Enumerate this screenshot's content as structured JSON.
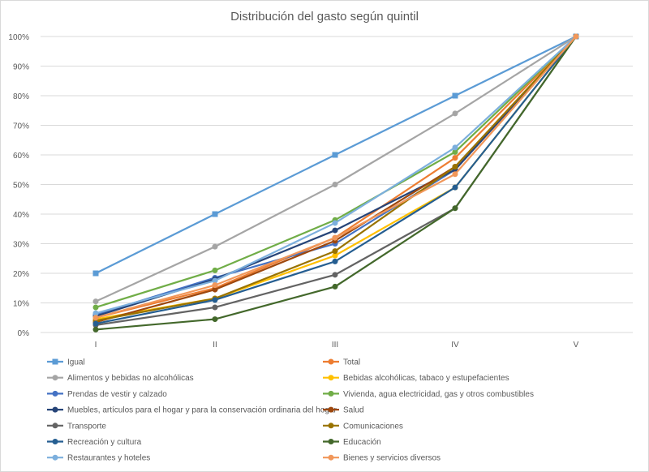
{
  "chart_data": {
    "type": "line",
    "title": "Distribución del gasto según quintil",
    "categories": [
      "I",
      "II",
      "III",
      "IV",
      "V"
    ],
    "ylim": [
      0,
      100
    ],
    "yticks": [
      "0%",
      "10%",
      "20%",
      "30%",
      "40%",
      "50%",
      "60%",
      "70%",
      "80%",
      "90%",
      "100%"
    ],
    "grid": true,
    "legend_position": "bottom",
    "series": [
      {
        "name": "Igual",
        "color": "#5b9bd5",
        "marker": "square",
        "values": [
          20,
          40,
          60,
          80,
          100
        ]
      },
      {
        "name": "Total",
        "color": "#ed7d31",
        "marker": "circle",
        "values": [
          5,
          15,
          32,
          59,
          100
        ]
      },
      {
        "name": "Alimentos y bebidas no alcohólicas",
        "color": "#a5a5a5",
        "marker": "circle",
        "values": [
          10.5,
          29,
          50,
          74,
          100
        ]
      },
      {
        "name": "Bebidas alcohólicas, tabaco y estupefacientes",
        "color": "#ffc000",
        "marker": "circle",
        "values": [
          4.5,
          11.5,
          26,
          49,
          100
        ]
      },
      {
        "name": "Prendas de vestir y calzado",
        "color": "#4472c4",
        "marker": "circle",
        "values": [
          6,
          18.5,
          30,
          55,
          100
        ]
      },
      {
        "name": "Vivienda, agua electricidad, gas y otros combustibles",
        "color": "#70ad47",
        "marker": "circle",
        "values": [
          8.5,
          21,
          38,
          61,
          100
        ]
      },
      {
        "name": "Muebles, artículos para el hogar y para la conservación ordinaria del hogar",
        "color": "#264478",
        "marker": "circle",
        "values": [
          5.5,
          18,
          34.5,
          55,
          100
        ]
      },
      {
        "name": "Salud",
        "color": "#9e480e",
        "marker": "circle",
        "values": [
          3.5,
          14.5,
          31,
          56,
          100
        ]
      },
      {
        "name": "Transporte",
        "color": "#636363",
        "marker": "circle",
        "values": [
          2.5,
          8.5,
          19.5,
          42,
          100
        ]
      },
      {
        "name": "Comunicaciones",
        "color": "#997300",
        "marker": "circle",
        "values": [
          4,
          11.5,
          27.5,
          56,
          100
        ]
      },
      {
        "name": "Recreación y cultura",
        "color": "#255e91",
        "marker": "circle",
        "values": [
          3,
          11,
          24,
          49,
          100
        ]
      },
      {
        "name": "Educación",
        "color": "#43682b",
        "marker": "circle",
        "values": [
          1,
          4.5,
          15.5,
          42,
          100
        ]
      },
      {
        "name": "Restaurantes y hoteles",
        "color": "#7cafdd",
        "marker": "circle",
        "values": [
          6.5,
          17.5,
          37,
          62.5,
          100
        ]
      },
      {
        "name": "Bienes y servicios diversos",
        "color": "#f1975a",
        "marker": "circle",
        "values": [
          5,
          16,
          32,
          53.5,
          100
        ]
      }
    ]
  }
}
